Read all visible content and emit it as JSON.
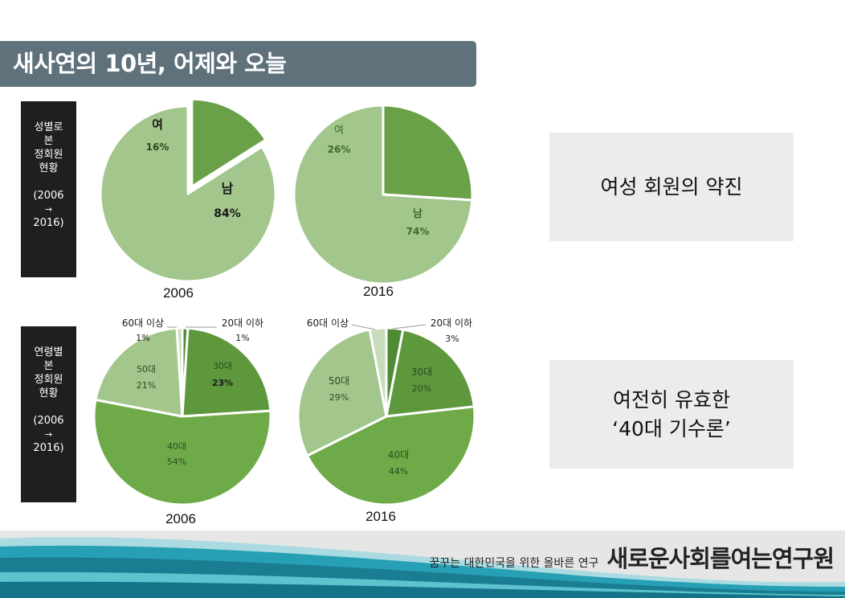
{
  "title": "새사연의 10년, 어제와 오늘",
  "sections": {
    "gender": {
      "label_lines": [
        "성별로",
        "본",
        "정회원",
        "현황"
      ],
      "period_lines": [
        "(2006",
        "→",
        "2016)"
      ],
      "callout_lines": [
        "여성 회원의 약진"
      ]
    },
    "age": {
      "label_lines": [
        "연령별",
        "본",
        "정회원",
        "현황"
      ],
      "period_lines": [
        "(2006",
        "→",
        "2016)"
      ],
      "callout_lines": [
        "여전히 유효한",
        "‘40대 기수론’"
      ]
    }
  },
  "chart_data": [
    {
      "type": "pie",
      "title": "2006",
      "slices": [
        {
          "label": "여",
          "value": 16,
          "text": "16%",
          "color": "#68a147",
          "exploded": true
        },
        {
          "label": "남",
          "value": 84,
          "text": "84%",
          "color": "#a2c68c"
        }
      ]
    },
    {
      "type": "pie",
      "title": "2016",
      "slices": [
        {
          "label": "여",
          "value": 26,
          "text": "26%",
          "color": "#68a147"
        },
        {
          "label": "남",
          "value": 74,
          "text": "74%",
          "color": "#a2c68c"
        }
      ]
    },
    {
      "type": "pie",
      "title": "2006",
      "slices": [
        {
          "label": "20대 이하",
          "value": 1,
          "text": "1%",
          "color": "#4f8a34"
        },
        {
          "label": "30대",
          "value": 23,
          "text": "23%",
          "color": "#5e983d"
        },
        {
          "label": "40대",
          "value": 54,
          "text": "54%",
          "color": "#6eab48"
        },
        {
          "label": "50대",
          "value": 21,
          "text": "21%",
          "color": "#a2c68c"
        },
        {
          "label": "60대 이상",
          "value": 1,
          "text": "1%",
          "color": "#c7dcbb"
        }
      ]
    },
    {
      "type": "pie",
      "title": "2016",
      "slices": [
        {
          "label": "20대 이하",
          "value": 3,
          "text": "3%",
          "color": "#4f8a34"
        },
        {
          "label": "30대",
          "value": 20,
          "text": "20%",
          "color": "#5e983d"
        },
        {
          "label": "40대",
          "value": 44,
          "text": "44%",
          "color": "#6eab48"
        },
        {
          "label": "50대",
          "value": 29,
          "text": "29%",
          "color": "#a2c68c"
        },
        {
          "label": "60대 이상",
          "value": 3,
          "text": "3%",
          "color": "#c7dcbb"
        }
      ]
    }
  ],
  "footer": {
    "tagline": "꿈꾸는 대한민국을 위한 올바른 연구",
    "org_name": "새로운사회를여는연구원"
  }
}
